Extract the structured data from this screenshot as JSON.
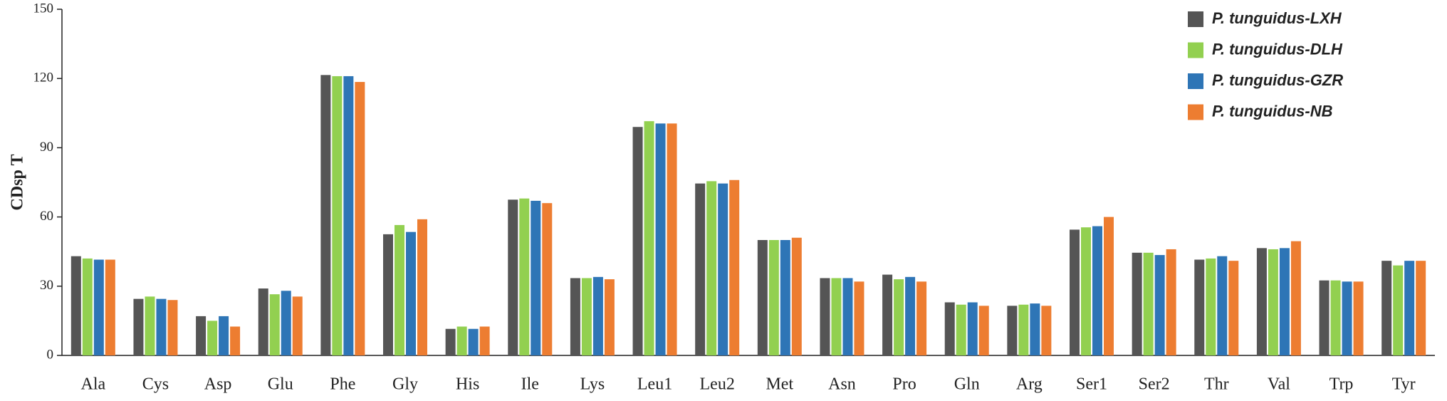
{
  "chart_data": {
    "type": "bar",
    "y_label": "CDsp T",
    "categories": [
      "Ala",
      "Cys",
      "Asp",
      "Glu",
      "Phe",
      "Gly",
      "His",
      "Ile",
      "Lys",
      "Leu1",
      "Leu2",
      "Met",
      "Asn",
      "Pro",
      "Gln",
      "Arg",
      "Ser1",
      "Ser2",
      "Thr",
      "Val",
      "Trp",
      "Tyr"
    ],
    "series": [
      {
        "name": "P. tunguidus-LXH",
        "color": "#555555",
        "values": [
          43,
          24.5,
          17,
          29,
          121.5,
          52.5,
          11.5,
          67.5,
          33.5,
          99,
          74.5,
          50,
          33.5,
          35,
          23,
          21.5,
          54.5,
          44.5,
          41.5,
          46.5,
          32.5,
          41
        ]
      },
      {
        "name": "P. tunguidus-DLH",
        "color": "#92d050",
        "values": [
          42,
          25.5,
          15,
          26.5,
          121,
          56.5,
          12.5,
          68,
          33.5,
          101.5,
          75.5,
          50,
          33.5,
          33,
          22,
          22,
          55.5,
          44.5,
          42,
          46,
          32.5,
          39
        ]
      },
      {
        "name": "P. tunguidus-GZR",
        "color": "#2e75b6",
        "values": [
          41.5,
          24.5,
          17,
          28,
          121,
          53.5,
          11.5,
          67,
          34,
          100.5,
          74.5,
          50,
          33.5,
          34,
          23,
          22.5,
          56,
          43.5,
          43,
          46.5,
          32,
          41
        ]
      },
      {
        "name": "P. tunguidus-NB",
        "color": "#ed7d31",
        "values": [
          41.5,
          24,
          12.5,
          25.5,
          118.5,
          59,
          12.5,
          66,
          33,
          100.5,
          76,
          51,
          32,
          32,
          21.5,
          21.5,
          60,
          46,
          41,
          49.5,
          32,
          41
        ]
      }
    ],
    "ylim": [
      0,
      150
    ],
    "yticks": [
      0,
      30,
      60,
      90,
      120,
      150
    ],
    "grid": false,
    "legend": "top-right"
  }
}
